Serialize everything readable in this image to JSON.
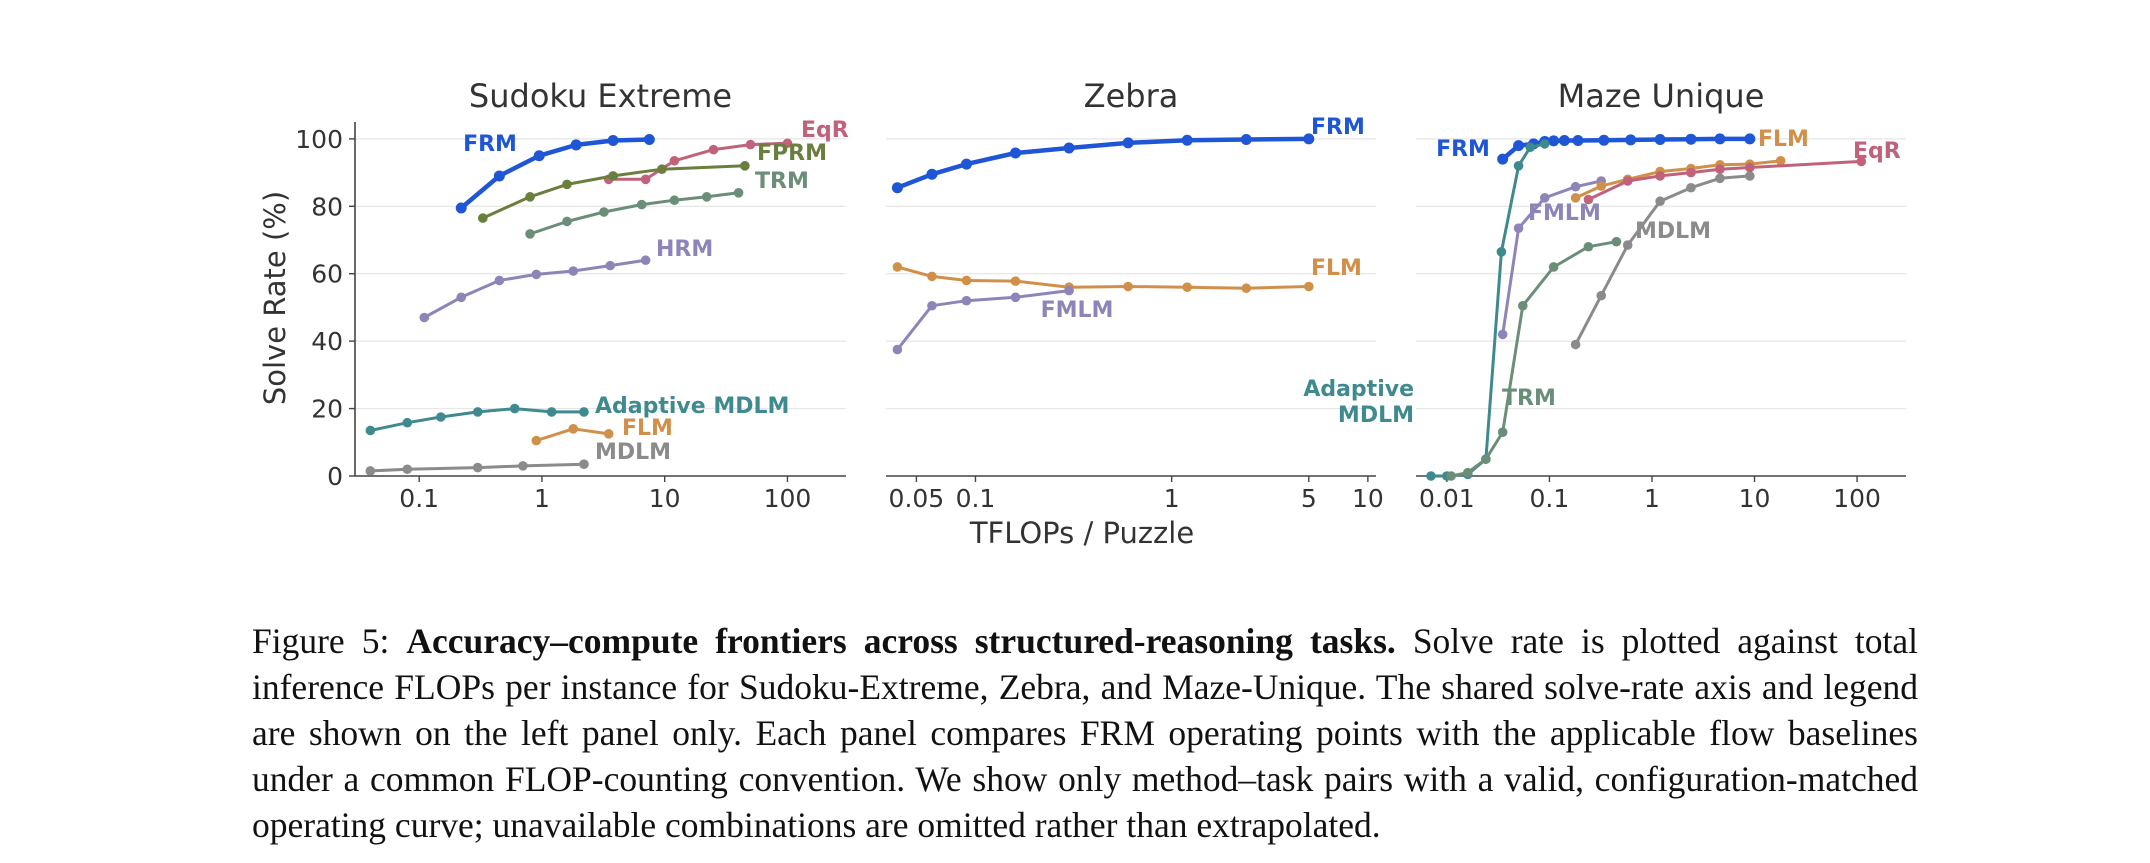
{
  "colors": {
    "FRM": "#1f56d6",
    "EqR": "#c0627a",
    "FPRM": "#6a7e3e",
    "TRM": "#6b8e78",
    "HRM": "#8e84b8",
    "Adaptive MDLM": "#3f8a8f",
    "FLM": "#d0904a",
    "MDLM": "#8b8b8b",
    "FMLM": "#8e84b8",
    "grid": "#e6e6e6",
    "axis": "#444444"
  },
  "shared": {
    "ylabel": "Solve Rate (%)",
    "xlabel": "TFLOPs / Puzzle"
  },
  "chart_data": [
    {
      "type": "line",
      "title": "Sudoku Extreme",
      "xscale": "log",
      "xlim": [
        0.03,
        300
      ],
      "ylim": [
        0,
        105
      ],
      "grid": "horizontal",
      "xticks": [
        0.1,
        1,
        10,
        100
      ],
      "xticklabels": [
        "0.1",
        "1",
        "10",
        "100"
      ],
      "yticks": [
        0,
        20,
        40,
        60,
        80,
        100
      ],
      "yticklabels": [
        "0",
        "20",
        "40",
        "60",
        "80",
        "100"
      ],
      "series": [
        {
          "name": "FRM",
          "label": "FRM",
          "x": [
            0.22,
            0.45,
            0.95,
            1.9,
            3.8,
            7.5
          ],
          "y": [
            79.5,
            89,
            95,
            98.2,
            99.5,
            99.8
          ]
        },
        {
          "name": "EqR",
          "label": "EqR",
          "x": [
            3.5,
            7,
            12,
            25,
            50,
            100
          ],
          "y": [
            88,
            88,
            93.5,
            96.8,
            98.3,
            98.7
          ]
        },
        {
          "name": "FPRM",
          "label": "FPRM",
          "x": [
            0.33,
            0.8,
            1.6,
            3.8,
            9.5,
            45
          ],
          "y": [
            76.5,
            82.8,
            86.5,
            89,
            91,
            92
          ]
        },
        {
          "name": "TRM",
          "label": "TRM",
          "x": [
            0.8,
            1.6,
            3.2,
            6.5,
            12,
            22,
            40
          ],
          "y": [
            71.8,
            75.5,
            78.3,
            80.5,
            81.8,
            82.8,
            84
          ]
        },
        {
          "name": "HRM",
          "label": "HRM",
          "x": [
            0.11,
            0.22,
            0.45,
            0.9,
            1.8,
            3.6,
            7
          ],
          "y": [
            47,
            53,
            58,
            59.8,
            60.8,
            62.4,
            64
          ]
        },
        {
          "name": "Adaptive MDLM",
          "label": "Adaptive MDLM",
          "x": [
            0.04,
            0.08,
            0.15,
            0.3,
            0.6,
            1.2,
            2.2
          ],
          "y": [
            13.5,
            15.8,
            17.5,
            19,
            20,
            19,
            19
          ]
        },
        {
          "name": "FLM",
          "label": "FLM",
          "x": [
            0.9,
            1.8,
            3.5
          ],
          "y": [
            10.5,
            14,
            12.5
          ]
        },
        {
          "name": "MDLM",
          "label": "MDLM",
          "x": [
            0.04,
            0.08,
            0.3,
            0.7,
            2.2
          ],
          "y": [
            1.5,
            2,
            2.5,
            3,
            3.5
          ]
        }
      ]
    },
    {
      "type": "line",
      "title": "Zebra",
      "xscale": "log",
      "xlim": [
        0.035,
        11
      ],
      "ylim": [
        0,
        105
      ],
      "grid": "horizontal",
      "xticks": [
        0.05,
        0.1,
        1,
        5,
        10
      ],
      "xticklabels": [
        "0.05",
        "0.1",
        "1",
        "5",
        "10"
      ],
      "series": [
        {
          "name": "FRM",
          "label": "FRM",
          "x": [
            0.04,
            0.06,
            0.09,
            0.16,
            0.3,
            0.6,
            1.2,
            2.4,
            5
          ],
          "y": [
            85.5,
            89.5,
            92.5,
            95.8,
            97.3,
            98.8,
            99.6,
            99.8,
            100
          ]
        },
        {
          "name": "FLM",
          "label": "FLM",
          "x": [
            0.04,
            0.06,
            0.09,
            0.16,
            0.3,
            0.6,
            1.2,
            2.4,
            5
          ],
          "y": [
            62,
            59.2,
            58,
            57.8,
            56,
            56.2,
            56,
            55.7,
            56.2
          ]
        },
        {
          "name": "FMLM",
          "label": "FMLM",
          "x": [
            0.04,
            0.06,
            0.09,
            0.16,
            0.3
          ],
          "y": [
            37.5,
            50.5,
            52,
            53,
            55
          ]
        }
      ]
    },
    {
      "type": "line",
      "title": "Maze Unique",
      "xscale": "log",
      "xlim": [
        0.005,
        300
      ],
      "ylim": [
        0,
        105
      ],
      "grid": "horizontal",
      "xticks": [
        0.01,
        0.1,
        1,
        10,
        100
      ],
      "xticklabels": [
        "0.01",
        "0.1",
        "1",
        "10",
        "100"
      ],
      "series": [
        {
          "name": "FRM",
          "label": "FRM",
          "x": [
            0.035,
            0.05,
            0.07,
            0.09,
            0.11,
            0.14,
            0.19,
            0.34,
            0.62,
            1.2,
            2.4,
            4.6,
            9
          ],
          "y": [
            94,
            98,
            98.5,
            99.2,
            99.4,
            99.5,
            99.5,
            99.6,
            99.7,
            99.8,
            99.9,
            100,
            100
          ]
        },
        {
          "name": "Adaptive MDLM",
          "label": "Adaptive MDLM",
          "x": [
            0.007,
            0.01,
            0.016,
            0.024,
            0.034,
            0.05,
            0.065,
            0.09
          ],
          "y": [
            0,
            0,
            0.5,
            5,
            66.5,
            92,
            97.5,
            98.5
          ]
        },
        {
          "name": "TRM",
          "label": "TRM",
          "x": [
            0.011,
            0.016,
            0.024,
            0.035,
            0.055,
            0.11,
            0.24,
            0.45
          ],
          "y": [
            0,
            1,
            5,
            13,
            50.5,
            62,
            68,
            69.5
          ]
        },
        {
          "name": "FMLM",
          "label": "FMLM",
          "x": [
            0.035,
            0.05,
            0.09,
            0.18,
            0.32
          ],
          "y": [
            42,
            73.5,
            82.5,
            85.8,
            87.5
          ]
        },
        {
          "name": "MDLM",
          "label": "MDLM",
          "x": [
            0.18,
            0.32,
            0.58,
            1.2,
            2.4,
            4.6,
            9
          ],
          "y": [
            39,
            53.5,
            68.5,
            81.5,
            85.5,
            88.3,
            89
          ]
        },
        {
          "name": "FLM",
          "label": "FLM",
          "x": [
            0.18,
            0.32,
            0.58,
            1.2,
            2.4,
            4.6,
            9,
            18
          ],
          "y": [
            82.5,
            86,
            88,
            90.3,
            91.2,
            92.3,
            92.5,
            93.5
          ]
        },
        {
          "name": "EqR",
          "label": "EqR",
          "x": [
            0.24,
            0.58,
            1.2,
            2.4,
            4.6,
            9,
            110
          ],
          "y": [
            82,
            87.5,
            89,
            90,
            91,
            91.5,
            93.3
          ]
        }
      ]
    }
  ],
  "caption": {
    "prefix": "Figure 5: ",
    "bold": "Accuracy–compute frontiers across structured-reasoning tasks.",
    "body": " Solve rate is plotted against total inference FLOPs per instance for Sudoku-Extreme, Zebra, and Maze-Unique. The shared solve-rate axis and legend are shown on the left panel only. Each panel compares FRM operating points with the applicable flow baselines under a common FLOP-counting convention. We show only method–task pairs with a valid, configuration-matched operating curve; unavailable combinations are omitted rather than extrapolated."
  }
}
